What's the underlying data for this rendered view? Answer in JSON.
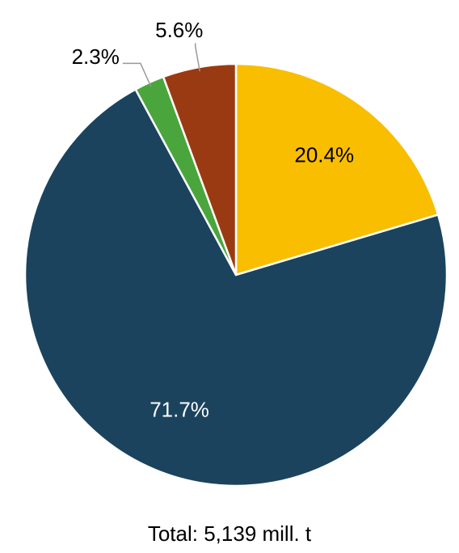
{
  "chart_data": {
    "type": "pie",
    "values": [
      20.4,
      71.7,
      2.3,
      5.6
    ],
    "value_labels": [
      "20.4%",
      "71.7%",
      "2.3%",
      "5.6%"
    ],
    "colors": [
      "#f9be00",
      "#1b435e",
      "#4aa63c",
      "#9a3a13"
    ],
    "label_colors": [
      "#000000",
      "#ffffff",
      "#000000",
      "#000000"
    ],
    "footer": "Total: 5,139 mill. t"
  }
}
